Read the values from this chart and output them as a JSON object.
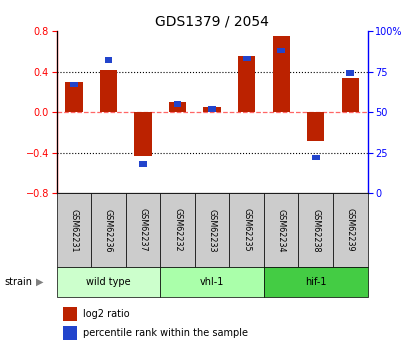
{
  "title": "GDS1379 / 2054",
  "samples": [
    "GSM62231",
    "GSM62236",
    "GSM62237",
    "GSM62232",
    "GSM62233",
    "GSM62235",
    "GSM62234",
    "GSM62238",
    "GSM62239"
  ],
  "log2_ratio": [
    0.3,
    0.42,
    -0.43,
    0.1,
    0.05,
    0.55,
    0.75,
    -0.28,
    0.34
  ],
  "percentile": [
    67,
    82,
    18,
    55,
    52,
    83,
    88,
    22,
    74
  ],
  "groups": [
    {
      "label": "wild type",
      "indices": [
        0,
        1,
        2
      ],
      "color": "#ccffcc"
    },
    {
      "label": "vhl-1",
      "indices": [
        3,
        4,
        5
      ],
      "color": "#aaffaa"
    },
    {
      "label": "hif-1",
      "indices": [
        6,
        7,
        8
      ],
      "color": "#44cc44"
    }
  ],
  "ylim": [
    -0.8,
    0.8
  ],
  "y2lim": [
    0,
    100
  ],
  "yticks": [
    -0.8,
    -0.4,
    0.0,
    0.4,
    0.8
  ],
  "y2ticks": [
    0,
    25,
    50,
    75,
    100
  ],
  "y2ticklabels": [
    "0",
    "25",
    "50",
    "75",
    "100%"
  ],
  "bar_color_red": "#bb2200",
  "bar_color_blue": "#2244cc",
  "sample_box_color": "#cccccc",
  "dotted_lines_black": [
    -0.4,
    0.4
  ],
  "zero_line_color": "#ff6666",
  "bar_width": 0.5,
  "title_fontsize": 10,
  "tick_fontsize": 7,
  "label_fontsize": 7,
  "legend_fontsize": 7
}
